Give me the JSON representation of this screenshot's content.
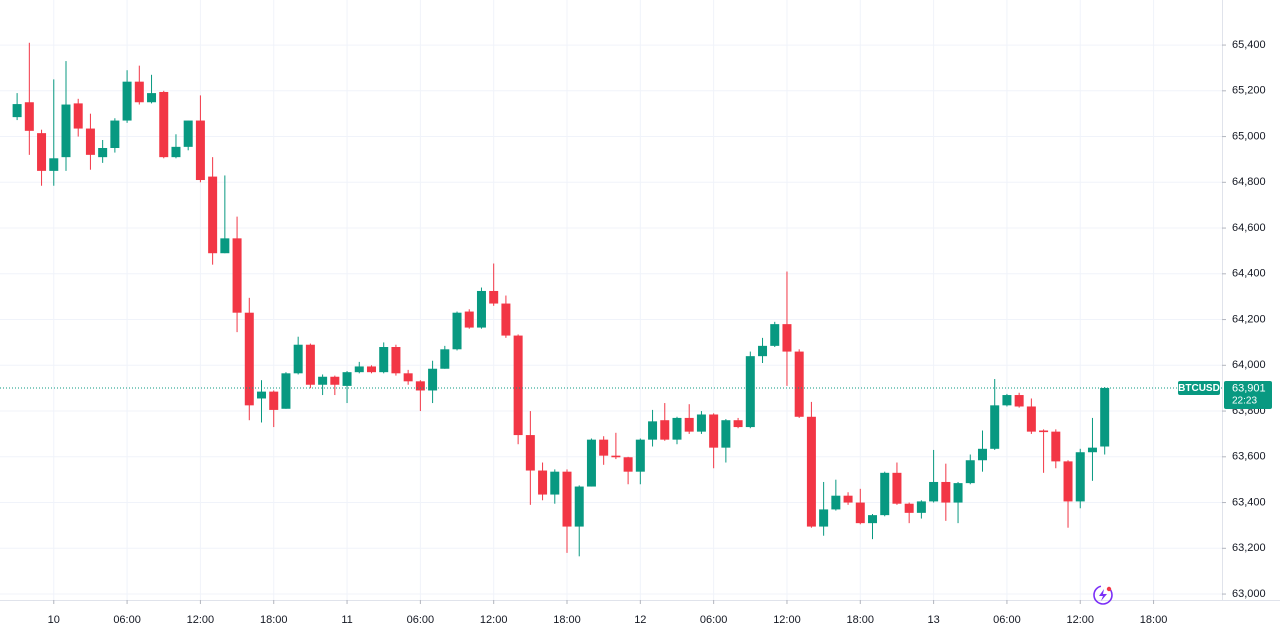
{
  "chart_data": {
    "type": "candlestick",
    "x": [
      -3,
      -2,
      -1,
      0,
      1,
      2,
      3,
      4,
      5,
      6,
      7,
      8,
      9,
      10,
      11,
      12,
      13,
      14,
      15,
      16,
      17,
      18,
      19,
      20,
      21,
      22,
      23,
      24,
      25,
      26,
      27,
      28,
      29,
      30,
      31,
      32,
      33,
      34,
      35,
      36,
      37,
      38,
      39,
      40,
      41,
      42,
      43,
      44,
      45,
      46,
      47,
      48,
      49,
      50,
      51,
      52,
      53,
      54,
      55,
      56,
      57,
      58,
      59,
      60,
      61,
      62,
      63,
      64,
      65,
      66,
      67,
      68,
      69,
      70,
      71,
      72,
      73,
      74,
      75,
      76,
      77,
      78,
      79,
      80,
      81,
      82,
      83,
      84,
      85,
      86
    ],
    "open": [
      65085,
      65150,
      65015,
      64850,
      64910,
      65145,
      65035,
      64910,
      64950,
      65070,
      65240,
      65150,
      65195,
      64910,
      64955,
      65070,
      64825,
      64490,
      64555,
      64230,
      63855,
      63885,
      63810,
      63965,
      64090,
      63915,
      63950,
      63910,
      63970,
      63995,
      63970,
      64080,
      63965,
      63930,
      63890,
      63985,
      64070,
      64235,
      64165,
      64325,
      64270,
      64130,
      63695,
      63540,
      63435,
      63535,
      63295,
      63470,
      63675,
      63605,
      63598,
      63535,
      63675,
      63760,
      63675,
      63770,
      63710,
      63785,
      63640,
      63760,
      63730,
      64040,
      64085,
      64180,
      64060,
      63775,
      63295,
      63370,
      63430,
      63400,
      63310,
      63345,
      63530,
      63395,
      63355,
      63405,
      63490,
      63400,
      63485,
      63585,
      63635,
      63825,
      63870,
      63820,
      63715,
      63710,
      63580,
      63405,
      63620,
      63645
    ],
    "high": [
      65190,
      65410,
      65030,
      65250,
      65330,
      65165,
      65100,
      64985,
      65080,
      65290,
      65310,
      65270,
      65200,
      65010,
      65070,
      65180,
      64910,
      64830,
      64650,
      64295,
      63935,
      63890,
      63970,
      64125,
      64095,
      63960,
      63955,
      63975,
      64015,
      64000,
      64100,
      64090,
      63980,
      63935,
      64020,
      64085,
      64235,
      64245,
      64340,
      64445,
      64305,
      64135,
      63800,
      63575,
      63545,
      63545,
      63475,
      63680,
      63690,
      63705,
      63600,
      63680,
      63805,
      63835,
      63775,
      63830,
      63800,
      63790,
      63765,
      63770,
      64060,
      64120,
      64190,
      64410,
      64070,
      63840,
      63490,
      63500,
      63445,
      63460,
      63350,
      63535,
      63575,
      63400,
      63410,
      63630,
      63570,
      63490,
      63610,
      63715,
      63940,
      63875,
      63880,
      63855,
      63720,
      63720,
      63585,
      63635,
      63770,
      63905
    ],
    "low": [
      65072,
      64920,
      64785,
      64785,
      64850,
      65000,
      64855,
      64885,
      64930,
      65060,
      65140,
      65145,
      64905,
      64905,
      64940,
      64800,
      64440,
      64490,
      64145,
      63760,
      63750,
      63730,
      63810,
      63960,
      63900,
      63870,
      63870,
      63835,
      63965,
      63965,
      63965,
      63955,
      63915,
      63800,
      63835,
      63985,
      64065,
      64160,
      64160,
      64260,
      64120,
      63655,
      63390,
      63410,
      63395,
      63180,
      63165,
      63470,
      63565,
      63590,
      63480,
      63480,
      63645,
      63670,
      63655,
      63700,
      63700,
      63550,
      63575,
      63725,
      63725,
      64010,
      64080,
      63910,
      63770,
      63290,
      63255,
      63365,
      63390,
      63305,
      63240,
      63340,
      63390,
      63310,
      63330,
      63400,
      63320,
      63310,
      63480,
      63535,
      63630,
      63820,
      63815,
      63700,
      63530,
      63550,
      63290,
      63375,
      63495,
      63610
    ],
    "close": [
      65142,
      65025,
      64850,
      64905,
      65140,
      65035,
      64920,
      64950,
      65070,
      65240,
      65150,
      65190,
      64910,
      64955,
      65070,
      64810,
      64490,
      64555,
      64230,
      63825,
      63885,
      63805,
      63965,
      64090,
      63915,
      63950,
      63915,
      63970,
      63995,
      63970,
      64080,
      63965,
      63930,
      63890,
      63985,
      64070,
      64230,
      64165,
      64325,
      64270,
      64130,
      63695,
      63540,
      63435,
      63535,
      63295,
      63470,
      63675,
      63605,
      63598,
      63535,
      63675,
      63755,
      63675,
      63770,
      63710,
      63785,
      63640,
      63760,
      63730,
      64040,
      64085,
      64180,
      64060,
      63775,
      63295,
      63370,
      63430,
      63400,
      63310,
      63345,
      63530,
      63395,
      63355,
      63405,
      63490,
      63400,
      63485,
      63585,
      63635,
      63825,
      63870,
      63820,
      63710,
      63708,
      63580,
      63405,
      63620,
      63640,
      63901
    ],
    "up_color": "#089981",
    "down_color": "#f23645",
    "xlim": [
      -4.4,
      95.6
    ],
    "xticks": [
      {
        "value": 0,
        "label": "10"
      },
      {
        "value": 6,
        "label": "06:00"
      },
      {
        "value": 12,
        "label": "12:00"
      },
      {
        "value": 18,
        "label": "18:00"
      },
      {
        "value": 24,
        "label": "11"
      },
      {
        "value": 30,
        "label": "06:00"
      },
      {
        "value": 36,
        "label": "12:00"
      },
      {
        "value": 42,
        "label": "18:00"
      },
      {
        "value": 48,
        "label": "12"
      },
      {
        "value": 54,
        "label": "06:00"
      },
      {
        "value": 60,
        "label": "12:00"
      },
      {
        "value": 66,
        "label": "18:00"
      },
      {
        "value": 72,
        "label": "13"
      },
      {
        "value": 78,
        "label": "06:00"
      },
      {
        "value": 84,
        "label": "12:00"
      },
      {
        "value": 90,
        "label": "18:00"
      }
    ],
    "ylim": [
      62974,
      65597
    ],
    "yticks": [
      {
        "value": 63000,
        "label": "63,000"
      },
      {
        "value": 63200,
        "label": "63,200"
      },
      {
        "value": 63400,
        "label": "63,400"
      },
      {
        "value": 63600,
        "label": "63,600"
      },
      {
        "value": 63800,
        "label": "63,800"
      },
      {
        "value": 64000,
        "label": "64,000"
      },
      {
        "value": 64200,
        "label": "64,200"
      },
      {
        "value": 64400,
        "label": "64,400"
      },
      {
        "value": 64600,
        "label": "64,600"
      },
      {
        "value": 64800,
        "label": "64,800"
      },
      {
        "value": 65000,
        "label": "65,000"
      },
      {
        "value": 65200,
        "label": "65,200"
      },
      {
        "value": 65400,
        "label": "65,400"
      }
    ],
    "grid": true,
    "current_price": {
      "symbol": "BTCUSD",
      "value": 63901,
      "label": "63,901",
      "countdown": "22:23"
    }
  }
}
